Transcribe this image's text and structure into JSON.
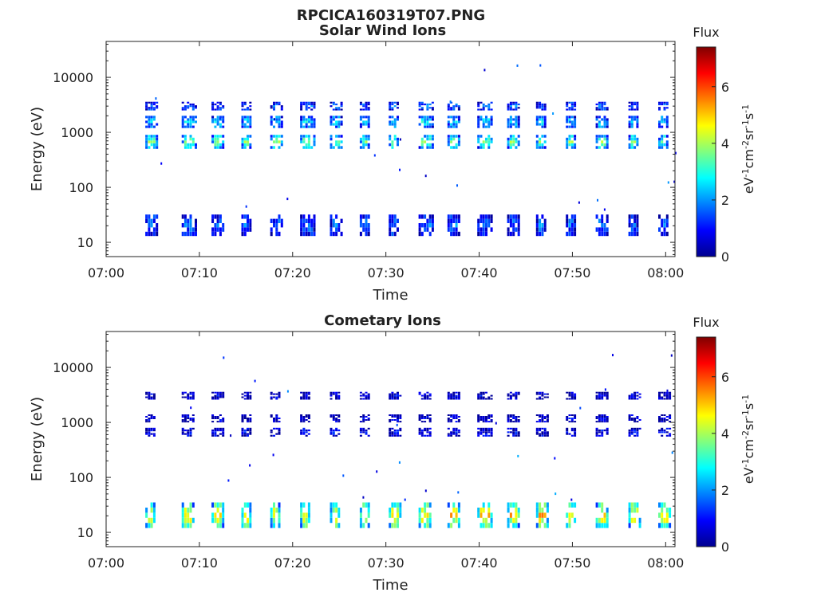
{
  "figure_title": "RPCICA160319T07.PNG",
  "chart_data": [
    {
      "type": "heatmap",
      "title": "Solar Wind Ions",
      "xlabel": "Time",
      "ylabel": "Energy (eV)",
      "x_ticks": [
        "07:00",
        "07:10",
        "07:20",
        "07:30",
        "07:40",
        "07:50",
        "08:00"
      ],
      "x_range_minutes": [
        0,
        61
      ],
      "y_scale": "log",
      "y_ticks": [
        10,
        100,
        1000,
        10000
      ],
      "y_tick_labels": [
        "10",
        "100",
        "1000",
        "10000"
      ],
      "ylim": [
        5.5,
        45000
      ],
      "colorbar": {
        "title": "Flux",
        "label": "eV-1cm-2sr-1s-1",
        "range": [
          0,
          7.4
        ],
        "ticks": [
          0,
          2,
          4,
          6
        ],
        "colormap": "jet"
      },
      "scan_start_minutes": [
        4.2,
        8.1,
        11.3,
        14.5,
        17.6,
        20.8,
        24.0,
        27.2,
        30.3,
        33.5,
        36.6,
        39.8,
        43.0,
        46.1,
        49.3,
        52.5,
        56.0,
        59.2
      ],
      "bands": [
        {
          "energy_low": 500,
          "energy_high": 900,
          "flux": 3.6
        },
        {
          "energy_low": 1200,
          "energy_high": 2000,
          "flux": 2.6
        },
        {
          "energy_low": 2500,
          "energy_high": 3600,
          "flux": 1.6
        },
        {
          "energy_low": 13,
          "energy_high": 32,
          "flux": 1.6
        }
      ]
    },
    {
      "type": "heatmap",
      "title": "Cometary Ions",
      "xlabel": "Time",
      "ylabel": "Energy (eV)",
      "x_ticks": [
        "07:00",
        "07:10",
        "07:20",
        "07:30",
        "07:40",
        "07:50",
        "08:00"
      ],
      "x_range_minutes": [
        0,
        61
      ],
      "y_scale": "log",
      "y_ticks": [
        10,
        100,
        1000,
        10000
      ],
      "y_tick_labels": [
        "10",
        "100",
        "1000",
        "10000"
      ],
      "ylim": [
        5.5,
        45000
      ],
      "colorbar": {
        "title": "Flux",
        "label": "eV-1cm-2sr-1s-1",
        "range": [
          0,
          7.4
        ],
        "ticks": [
          0,
          2,
          4,
          6
        ],
        "colormap": "jet"
      },
      "scan_start_minutes": [
        4.2,
        8.1,
        11.3,
        14.5,
        17.6,
        20.8,
        24.0,
        27.2,
        30.3,
        33.5,
        36.6,
        39.8,
        43.0,
        46.1,
        49.3,
        52.5,
        56.0,
        59.2
      ],
      "bands": [
        {
          "energy_low": 12,
          "energy_high": 35,
          "flux": 5.0
        },
        {
          "energy_low": 550,
          "energy_high": 800,
          "flux": 0.8
        },
        {
          "energy_low": 1000,
          "energy_high": 1400,
          "flux": 0.6
        },
        {
          "energy_low": 2600,
          "energy_high": 3600,
          "flux": 0.6
        }
      ]
    }
  ]
}
